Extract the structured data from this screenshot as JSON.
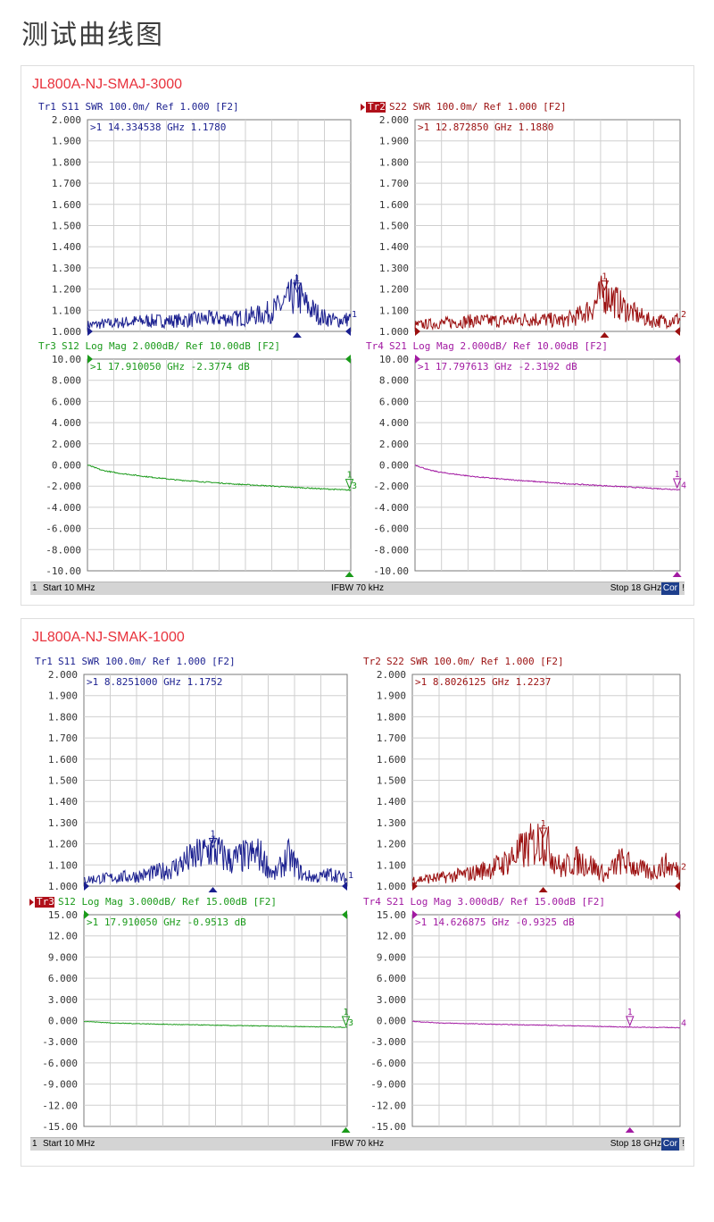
{
  "page": {
    "title": "测试曲线图"
  },
  "cards": [
    {
      "title": "JL800A-NJ-SMAJ-3000",
      "status": {
        "num": "1",
        "start": "Start 10 MHz",
        "ifbw": "IFBW 70 kHz",
        "stop": "Stop 18 GHz",
        "cor": "Cor",
        "excl": "!"
      },
      "panels": [
        {
          "trace": "Tr1",
          "trace_boxed": false,
          "header": "S11 SWR 100.0m/ Ref 1.000 [F2]",
          "color": "#1a1f8f",
          "marker_readout": ">1  14.334538 GHz  1.1780",
          "end_label": "1",
          "yticks": [
            "2.000",
            "1.900",
            "1.800",
            "1.700",
            "1.600",
            "1.500",
            "1.400",
            "1.300",
            "1.200",
            "1.100",
            "1.000"
          ]
        },
        {
          "trace": "Tr2",
          "trace_boxed": true,
          "header": "S22 SWR 100.0m/ Ref 1.000 [F2]",
          "color": "#9b1010",
          "marker_readout": ">1  12.872850 GHz  1.1880",
          "end_label": "2",
          "yticks": [
            "2.000",
            "1.900",
            "1.800",
            "1.700",
            "1.600",
            "1.500",
            "1.400",
            "1.300",
            "1.200",
            "1.100",
            "1.000"
          ]
        },
        {
          "trace": "Tr3",
          "trace_boxed": false,
          "header": "S12 Log Mag 2.000dB/ Ref 10.00dB [F2]",
          "color": "#1a9a1a",
          "marker_readout": ">1  17.910050 GHz -2.3774 dB",
          "end_label": "3",
          "yticks": [
            "10.00",
            "8.000",
            "6.000",
            "4.000",
            "2.000",
            "0.000",
            "-2.000",
            "-4.000",
            "-6.000",
            "-8.000",
            "-10.00"
          ]
        },
        {
          "trace": "Tr4",
          "trace_boxed": false,
          "header": "S21 Log Mag 2.000dB/ Ref 10.00dB [F2]",
          "color": "#a21aa2",
          "marker_readout": ">1  17.797613 GHz -2.3192 dB",
          "end_label": "4",
          "yticks": [
            "10.00",
            "8.000",
            "6.000",
            "4.000",
            "2.000",
            "0.000",
            "-2.000",
            "-4.000",
            "-6.000",
            "-8.000",
            "-10.00"
          ]
        }
      ]
    },
    {
      "title": "JL800A-NJ-SMAK-1000",
      "status": {
        "num": "1",
        "start": "Start 10 MHz",
        "ifbw": "IFBW 70 kHz",
        "stop": "Stop 18 GHz",
        "cor": "Cor",
        "excl": "!"
      },
      "panels": [
        {
          "trace": "Tr1",
          "trace_boxed": false,
          "header": "S11 SWR 100.0m/ Ref 1.000 [F2]",
          "color": "#1a1f8f",
          "marker_readout": ">1  8.8251000 GHz  1.1752",
          "end_label": "1",
          "yticks": [
            "2.000",
            "1.900",
            "1.800",
            "1.700",
            "1.600",
            "1.500",
            "1.400",
            "1.300",
            "1.200",
            "1.100",
            "1.000"
          ]
        },
        {
          "trace": "Tr2",
          "trace_boxed": false,
          "header": "S22 SWR 100.0m/ Ref 1.000 [F2]",
          "color": "#9b1010",
          "marker_readout": ">1  8.8026125 GHz  1.2237",
          "end_label": "2",
          "yticks": [
            "2.000",
            "1.900",
            "1.800",
            "1.700",
            "1.600",
            "1.500",
            "1.400",
            "1.300",
            "1.200",
            "1.100",
            "1.000"
          ]
        },
        {
          "trace": "Tr3",
          "trace_boxed": true,
          "header": "S12 Log Mag 3.000dB/ Ref 15.00dB [F2]",
          "color": "#1a9a1a",
          "marker_readout": ">1  17.910050 GHz -0.9513 dB",
          "end_label": "3",
          "yticks": [
            "15.00",
            "12.00",
            "9.000",
            "6.000",
            "3.000",
            "0.000",
            "-3.000",
            "-6.000",
            "-9.000",
            "-12.00",
            "-15.00"
          ]
        },
        {
          "trace": "Tr4",
          "trace_boxed": false,
          "header": "S21 Log Mag 3.000dB/ Ref 15.00dB [F2]",
          "color": "#a21aa2",
          "marker_readout": ">1  14.626875 GHz -0.9325 dB",
          "end_label": "4",
          "yticks": [
            "15.00",
            "12.00",
            "9.000",
            "6.000",
            "3.000",
            "0.000",
            "-3.000",
            "-6.000",
            "-9.000",
            "-12.00",
            "-15.00"
          ]
        }
      ]
    }
  ],
  "chart_data": [
    {
      "type": "line",
      "title": "JL800A-NJ-SMAJ-3000 S11",
      "xlim": [
        0.01,
        18
      ],
      "ylim": [
        1.0,
        2.0
      ],
      "series": [
        {
          "name": "S11",
          "x": [
            0.01,
            2,
            4,
            6,
            8,
            10,
            12,
            13,
            14.33,
            15,
            16,
            17,
            18
          ],
          "y": [
            1.03,
            1.04,
            1.05,
            1.05,
            1.06,
            1.06,
            1.08,
            1.11,
            1.178,
            1.12,
            1.07,
            1.05,
            1.06
          ]
        }
      ],
      "marker": {
        "x": 14.334538,
        "y": 1.178
      }
    },
    {
      "type": "line",
      "title": "JL800A-NJ-SMAJ-3000 S22",
      "xlim": [
        0.01,
        18
      ],
      "ylim": [
        1.0,
        2.0
      ],
      "series": [
        {
          "name": "S22",
          "x": [
            0.01,
            2,
            4,
            6,
            8,
            10,
            11,
            12,
            12.87,
            14,
            15,
            16,
            17,
            18
          ],
          "y": [
            1.03,
            1.04,
            1.05,
            1.05,
            1.06,
            1.05,
            1.07,
            1.11,
            1.188,
            1.12,
            1.08,
            1.05,
            1.05,
            1.06
          ]
        }
      ],
      "marker": {
        "x": 12.87285,
        "y": 1.188
      }
    },
    {
      "type": "line",
      "title": "JL800A-NJ-SMAJ-3000 S12",
      "xlim": [
        0.01,
        18
      ],
      "ylim": [
        -10,
        10
      ],
      "series": [
        {
          "name": "S12",
          "x": [
            0.01,
            1,
            2,
            4,
            6,
            8,
            10,
            12,
            14,
            16,
            17.91,
            18
          ],
          "y": [
            0.0,
            -0.5,
            -0.75,
            -1.1,
            -1.4,
            -1.6,
            -1.8,
            -1.95,
            -2.1,
            -2.25,
            -2.3774,
            -2.4
          ]
        }
      ],
      "marker": {
        "x": 17.91005,
        "y": -2.3774
      }
    },
    {
      "type": "line",
      "title": "JL800A-NJ-SMAJ-3000 S21",
      "xlim": [
        0.01,
        18
      ],
      "ylim": [
        -10,
        10
      ],
      "series": [
        {
          "name": "S21",
          "x": [
            0.01,
            1,
            2,
            4,
            6,
            8,
            10,
            12,
            14,
            16,
            17.8,
            18
          ],
          "y": [
            0.0,
            -0.5,
            -0.75,
            -1.1,
            -1.35,
            -1.55,
            -1.75,
            -1.9,
            -2.05,
            -2.2,
            -2.3192,
            -2.35
          ]
        }
      ],
      "marker": {
        "x": 17.797613,
        "y": -2.3192
      }
    },
    {
      "type": "line",
      "title": "JL800A-NJ-SMAK-1000 S11",
      "xlim": [
        0.01,
        18
      ],
      "ylim": [
        1.0,
        2.0
      ],
      "series": [
        {
          "name": "S11",
          "x": [
            0.01,
            2,
            4,
            6,
            7,
            8.83,
            10,
            11,
            12,
            13,
            14,
            15,
            16,
            17,
            18
          ],
          "y": [
            1.03,
            1.04,
            1.05,
            1.08,
            1.12,
            1.175,
            1.12,
            1.14,
            1.15,
            1.05,
            1.14,
            1.05,
            1.04,
            1.06,
            1.03
          ]
        }
      ],
      "marker": {
        "x": 8.8251,
        "y": 1.1752
      }
    },
    {
      "type": "line",
      "title": "JL800A-NJ-SMAK-1000 S22",
      "xlim": [
        0.01,
        18
      ],
      "ylim": [
        1.0,
        2.0
      ],
      "series": [
        {
          "name": "S22",
          "x": [
            0.01,
            2,
            4,
            6,
            7,
            8.8,
            10,
            11,
            12,
            13,
            14,
            15,
            16,
            17,
            18
          ],
          "y": [
            1.03,
            1.04,
            1.06,
            1.1,
            1.15,
            1.224,
            1.08,
            1.12,
            1.1,
            1.05,
            1.12,
            1.09,
            1.06,
            1.1,
            1.07
          ]
        }
      ],
      "marker": {
        "x": 8.8026125,
        "y": 1.2237
      }
    },
    {
      "type": "line",
      "title": "JL800A-NJ-SMAK-1000 S12",
      "xlim": [
        0.01,
        18
      ],
      "ylim": [
        -15,
        15
      ],
      "series": [
        {
          "name": "S12",
          "x": [
            0.01,
            2,
            4,
            6,
            8,
            10,
            12,
            14,
            16,
            17.91,
            18
          ],
          "y": [
            -0.1,
            -0.35,
            -0.45,
            -0.55,
            -0.62,
            -0.7,
            -0.76,
            -0.82,
            -0.88,
            -0.9513,
            -0.96
          ]
        }
      ],
      "marker": {
        "x": 17.91005,
        "y": -0.9513
      }
    },
    {
      "type": "line",
      "title": "JL800A-NJ-SMAK-1000 S21",
      "xlim": [
        0.01,
        18
      ],
      "ylim": [
        -15,
        15
      ],
      "series": [
        {
          "name": "S21",
          "x": [
            0.01,
            2,
            4,
            6,
            8,
            10,
            12,
            14,
            14.63,
            16,
            18
          ],
          "y": [
            -0.1,
            -0.35,
            -0.45,
            -0.55,
            -0.62,
            -0.7,
            -0.8,
            -0.9,
            -0.9325,
            -0.96,
            -1.0
          ]
        }
      ],
      "marker": {
        "x": 14.626875,
        "y": -0.9325
      }
    }
  ]
}
